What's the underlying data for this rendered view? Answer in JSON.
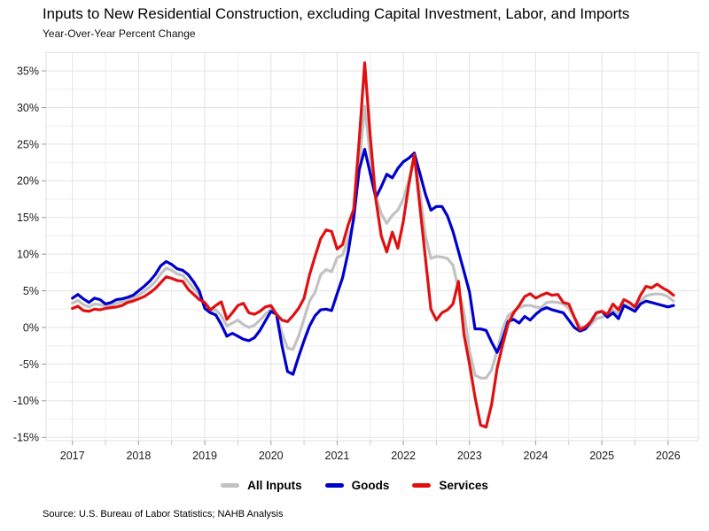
{
  "title": "Inputs to New Residential Construction, excluding Capital Investment, Labor, and Imports",
  "subtitle": "Year-Over-Year Percent Change",
  "source": "Source: U.S. Bureau of Labor Statistics; NAHB Analysis",
  "legend": {
    "items": [
      {
        "label": "All Inputs",
        "color": "#c2c2c2"
      },
      {
        "label": "Goods",
        "color": "#0000cd"
      },
      {
        "label": "Services",
        "color": "#e01010"
      }
    ]
  },
  "chart_data": {
    "type": "line",
    "title": "Inputs to New Residential Construction, excluding Capital Investment, Labor, and Imports",
    "subtitle": "Year-Over-Year Percent Change",
    "x_unit": "month",
    "x_start": "2017-01",
    "x_end": "2026-02",
    "x_tick_labels": [
      "2017",
      "2018",
      "2019",
      "2020",
      "2021",
      "2022",
      "2023",
      "2024",
      "2025",
      "2026"
    ],
    "x_tick_values": [
      2017,
      2018,
      2019,
      2020,
      2021,
      2022,
      2023,
      2024,
      2025,
      2026
    ],
    "y_tick_labels": [
      "-15%",
      "-10%",
      "-5%",
      "0%",
      "5%",
      "10%",
      "15%",
      "20%",
      "25%",
      "30%",
      "35%"
    ],
    "y_tick_values": [
      -15,
      -10,
      -5,
      0,
      5,
      10,
      15,
      20,
      25,
      30,
      35
    ],
    "ylim": [
      -15.5,
      37.5
    ],
    "grid": "major and minor light-gray gridlines, white background",
    "legend_position": "bottom center",
    "series": [
      {
        "name": "All Inputs",
        "color": "#c2c2c2",
        "values": [
          3.3,
          3.7,
          3.1,
          2.8,
          3.2,
          3.1,
          2.9,
          3.0,
          3.3,
          3.5,
          3.7,
          4.0,
          4.4,
          4.9,
          5.5,
          6.2,
          7.3,
          8.1,
          7.8,
          7.3,
          7.1,
          6.2,
          5.3,
          4.5,
          3.0,
          2.2,
          2.4,
          1.6,
          0.2,
          0.6,
          1.0,
          0.4,
          0.0,
          0.3,
          1.0,
          1.8,
          2.5,
          1.9,
          -0.8,
          -2.8,
          -3.0,
          -1.2,
          1.2,
          3.6,
          4.8,
          7.2,
          7.9,
          7.6,
          9.5,
          9.9,
          12.1,
          14.5,
          22.0,
          30.2,
          23.3,
          18.0,
          15.5,
          14.2,
          15.3,
          16.0,
          17.5,
          20.0,
          23.4,
          18.5,
          12.5,
          9.4,
          9.7,
          9.6,
          9.4,
          8.5,
          5.2,
          2.0,
          -3.2,
          -6.5,
          -6.9,
          -6.9,
          -5.8,
          -3.2,
          -0.2,
          1.6,
          2.2,
          2.7,
          3.0,
          3.0,
          2.8,
          2.7,
          3.4,
          3.5,
          3.4,
          3.2,
          2.6,
          1.4,
          0.2,
          -0.2,
          0.4,
          1.2,
          1.4,
          1.7,
          2.4,
          1.8,
          3.2,
          2.8,
          2.5,
          3.6,
          4.3,
          4.5,
          4.6,
          4.5,
          4.2,
          3.6
        ]
      },
      {
        "name": "Goods",
        "color": "#0000cd",
        "values": [
          4.0,
          4.5,
          3.9,
          3.4,
          4.0,
          3.8,
          3.2,
          3.4,
          3.8,
          3.9,
          4.1,
          4.4,
          5.0,
          5.6,
          6.3,
          7.2,
          8.4,
          9.0,
          8.6,
          8.0,
          7.8,
          7.2,
          6.2,
          5.0,
          2.6,
          2.0,
          1.7,
          0.4,
          -1.2,
          -0.8,
          -1.2,
          -1.6,
          -1.8,
          -1.4,
          -0.4,
          0.9,
          2.2,
          1.8,
          -2.5,
          -6.0,
          -6.4,
          -4.0,
          -1.8,
          0.2,
          1.6,
          2.4,
          2.5,
          2.3,
          4.6,
          6.8,
          10.3,
          15.0,
          21.5,
          24.3,
          21.0,
          17.7,
          19.2,
          20.9,
          20.4,
          21.7,
          22.6,
          23.1,
          23.8,
          21.0,
          18.2,
          16.0,
          16.5,
          16.5,
          15.2,
          13.1,
          10.4,
          7.6,
          4.8,
          -0.2,
          -0.2,
          -0.4,
          -2.0,
          -3.4,
          -1.6,
          0.8,
          1.1,
          0.6,
          1.5,
          1.0,
          1.8,
          2.4,
          2.7,
          2.4,
          2.2,
          2.0,
          1.0,
          0.0,
          -0.5,
          -0.2,
          0.8,
          2.0,
          2.2,
          1.4,
          2.0,
          1.2,
          3.0,
          2.6,
          2.2,
          3.2,
          3.6,
          3.4,
          3.2,
          3.0,
          2.8,
          3.0
        ]
      },
      {
        "name": "Services",
        "color": "#e01010",
        "values": [
          2.6,
          2.9,
          2.3,
          2.2,
          2.5,
          2.4,
          2.6,
          2.7,
          2.8,
          3.0,
          3.4,
          3.6,
          3.9,
          4.2,
          4.7,
          5.3,
          6.1,
          6.9,
          6.7,
          6.4,
          6.3,
          5.2,
          4.5,
          3.8,
          3.4,
          2.4,
          3.0,
          3.5,
          1.1,
          2.0,
          3.0,
          3.3,
          2.0,
          1.8,
          2.2,
          2.8,
          3.0,
          1.8,
          1.0,
          0.8,
          1.6,
          2.6,
          4.0,
          7.2,
          9.7,
          12.1,
          13.3,
          13.1,
          10.7,
          11.3,
          14.0,
          16.1,
          25.5,
          36.1,
          26.0,
          17.5,
          12.5,
          10.3,
          13.0,
          10.8,
          14.5,
          19.5,
          23.6,
          16.5,
          9.5,
          2.5,
          1.0,
          2.0,
          2.4,
          3.2,
          6.3,
          -1.0,
          -5.0,
          -9.5,
          -13.3,
          -13.6,
          -10.5,
          -5.6,
          -2.4,
          0.5,
          2.0,
          3.0,
          4.2,
          4.6,
          4.0,
          4.4,
          4.7,
          4.4,
          4.5,
          3.4,
          3.2,
          1.4,
          -0.3,
          0.1,
          0.8,
          2.0,
          2.2,
          1.8,
          3.2,
          2.4,
          3.8,
          3.4,
          2.8,
          4.4,
          5.6,
          5.4,
          5.9,
          5.4,
          5.0,
          4.4
        ]
      }
    ]
  }
}
